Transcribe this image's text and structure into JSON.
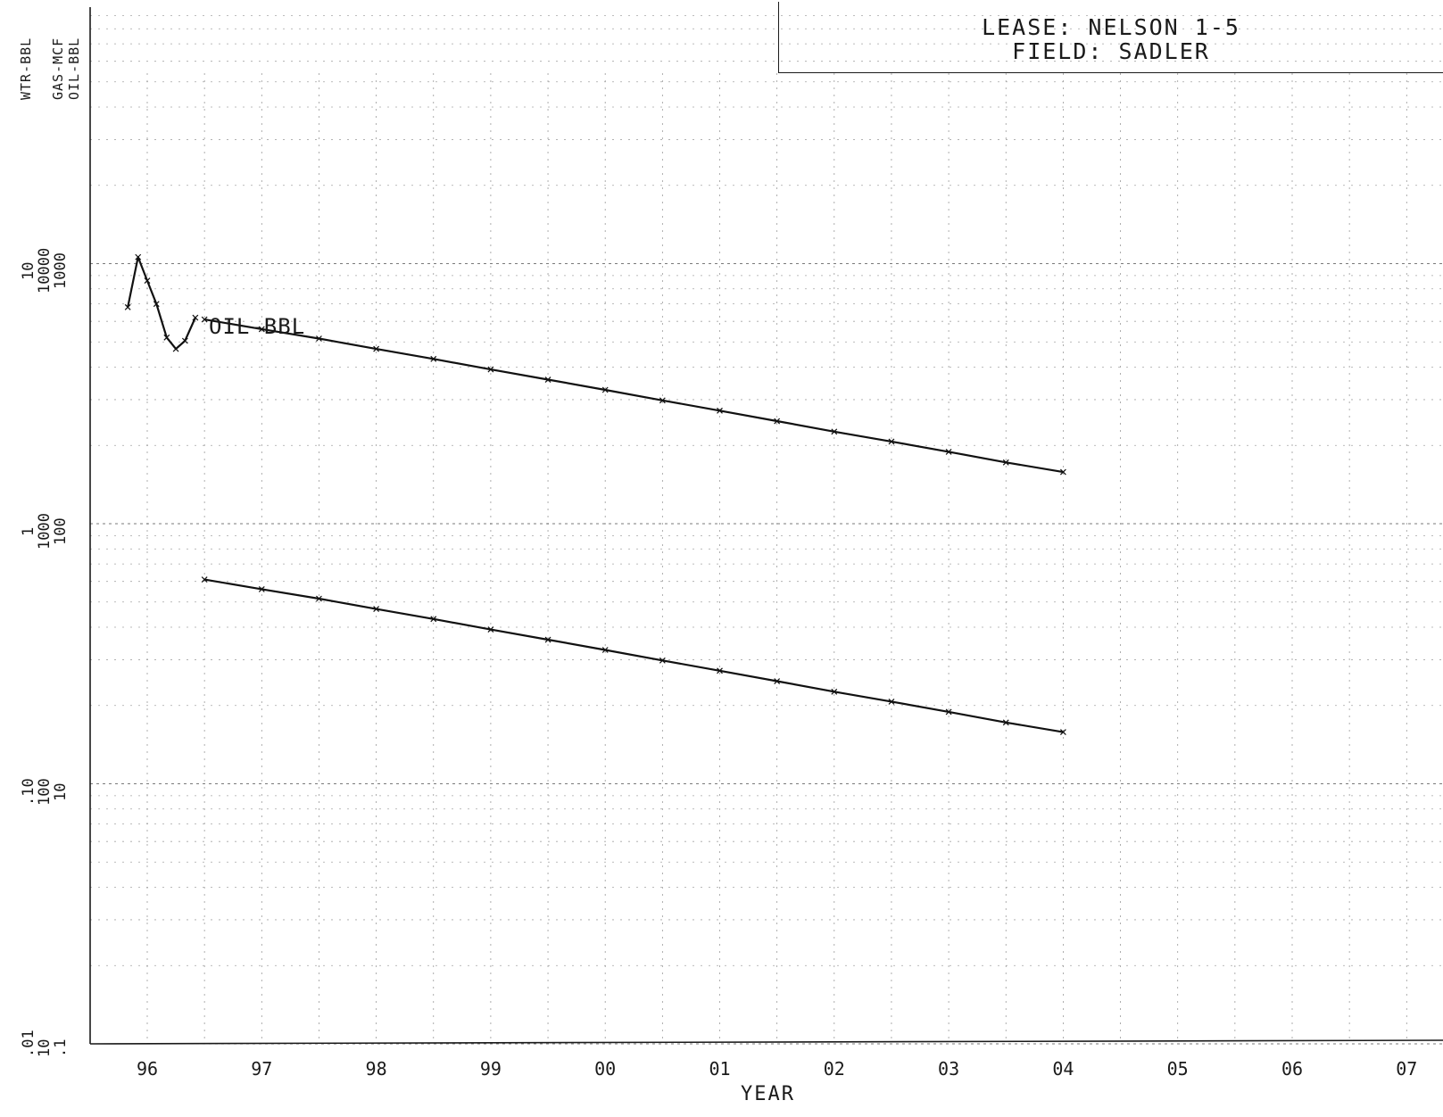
{
  "legend": {
    "line1": "LEASE:  NELSON 1-5",
    "line2": "FIELD:  SADLER"
  },
  "axes": {
    "unit_labels": [
      "WTR-BBL",
      "GAS-MCF",
      "OIL-BBL"
    ],
    "y_tick_columns": [
      [
        "10",
        "10000",
        "1000"
      ],
      [
        "1",
        "1000",
        "100"
      ],
      [
        ".10",
        "100",
        "10"
      ],
      [
        ".01",
        "10",
        "1"
      ]
    ],
    "y_tick_columns_bottom": [
      ".01",
      "10",
      ".1"
    ]
  },
  "chart_data": {
    "type": "line",
    "title": "",
    "xlabel": "YEAR",
    "ylabel": "OIL-BBL",
    "x_tick_labels": [
      "96",
      "97",
      "98",
      "99",
      "00",
      "01",
      "02",
      "03",
      "04",
      "05",
      "06",
      "07"
    ],
    "x_range_years": [
      1995.5,
      2007.5
    ],
    "y_scale": "log",
    "ylim": [
      1,
      10000
    ],
    "grid": true,
    "series": [
      {
        "name": "OIL-BBL",
        "history": {
          "x": [
            1995.83,
            1995.92,
            1996.0,
            1996.08,
            1996.17,
            1996.25,
            1996.33,
            1996.42
          ],
          "y": [
            680,
            1060,
            860,
            700,
            520,
            470,
            505,
            620
          ]
        },
        "forecast": {
          "x": [
            1996.5,
            1997.0,
            1997.5,
            1998.0,
            1998.5,
            1999.0,
            1999.5,
            2000.0,
            2000.5,
            2001.0,
            2001.5,
            2002.0,
            2002.5,
            2003.0,
            2003.5,
            2004.0
          ],
          "y": [
            610,
            560,
            515,
            470,
            430,
            392,
            358,
            327,
            298,
            272,
            248,
            226,
            207,
            189,
            172,
            158
          ]
        }
      },
      {
        "name": "",
        "history": {
          "x": [],
          "y": []
        },
        "forecast": {
          "x": [
            1996.5,
            1997.0,
            1997.5,
            1998.0,
            1998.5,
            1999.0,
            1999.5,
            2000.0,
            2000.5,
            2001.0,
            2001.5,
            2002.0,
            2002.5,
            2003.0,
            2003.5,
            2004.0
          ],
          "y": [
            61,
            56,
            51.5,
            47,
            43,
            39.2,
            35.8,
            32.7,
            29.8,
            27.2,
            24.8,
            22.6,
            20.7,
            18.9,
            17.2,
            15.8
          ]
        }
      }
    ]
  }
}
